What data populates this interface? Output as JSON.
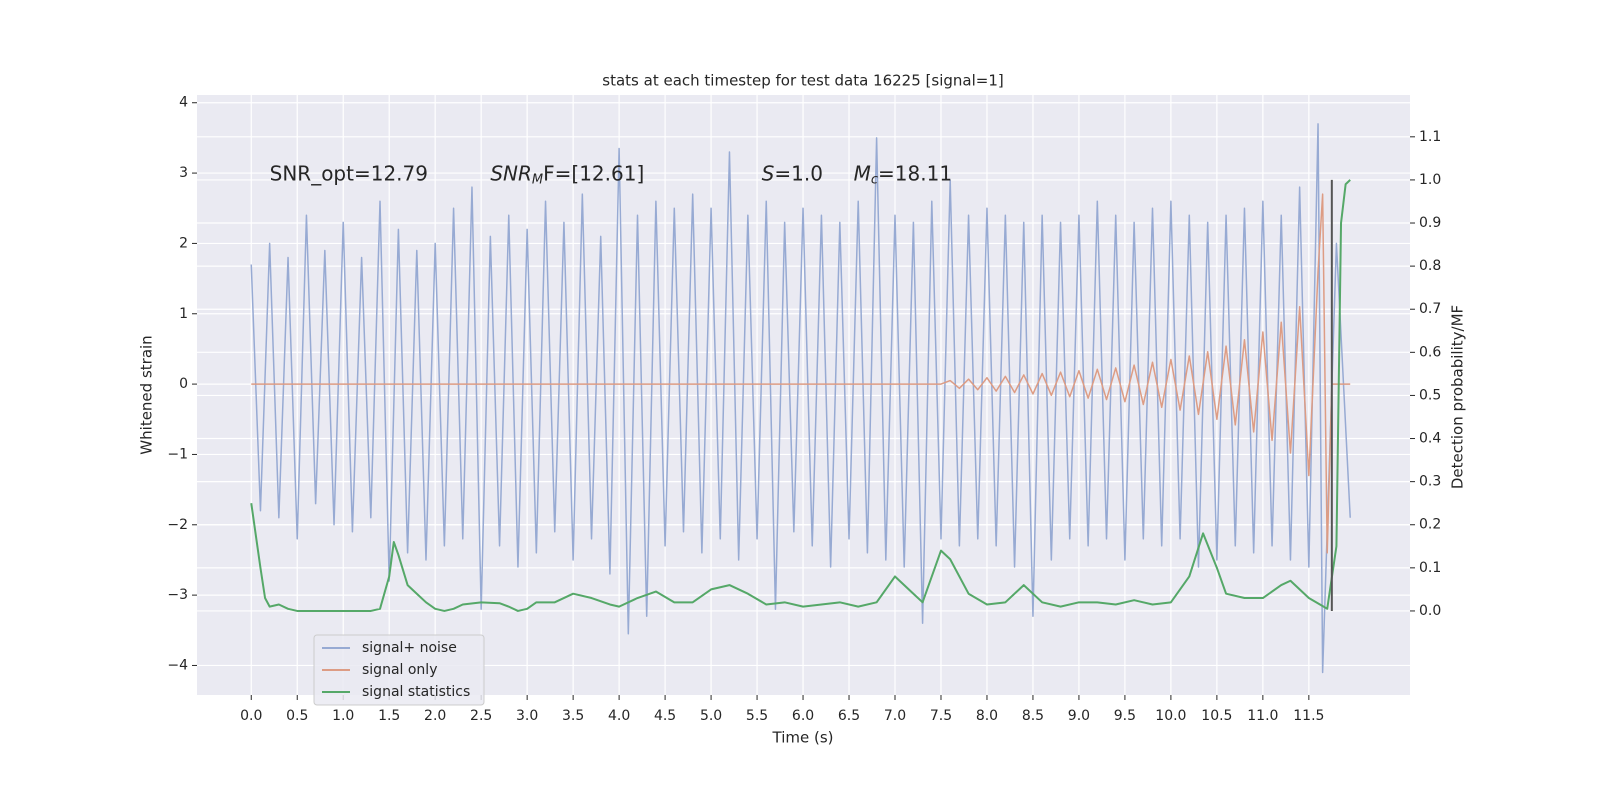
{
  "chart_data": {
    "type": "line",
    "title": "stats at each timestep for test data 16225 [signal=1]",
    "xlabel": "Time (s)",
    "ylabel": "Whitened strain",
    "y2label": "Detection probability/MF",
    "annotations": [
      [
        "SNR_opt=12.79"
      ],
      [
        "SNR",
        "M",
        "F=[12.61]"
      ],
      [
        "S",
        "=1.0"
      ],
      [
        "M",
        "c",
        "=18.11"
      ]
    ],
    "xlim": [
      -0.59,
      12.6
    ],
    "ylim": [
      -4.42,
      4.11
    ],
    "y2lim": [
      -0.195,
      1.197
    ],
    "xticks": [
      {
        "value": 0,
        "label": "0.0"
      },
      0.5,
      {
        "value": 1,
        "label": "1.0"
      },
      1.5,
      {
        "value": 2,
        "label": "2.0"
      },
      2.5,
      {
        "value": 3,
        "label": "3.0"
      },
      3.5,
      {
        "value": 4,
        "label": "4.0"
      },
      4.5,
      {
        "value": 5,
        "label": "5.0"
      },
      5.5,
      {
        "value": 6,
        "label": "6.0"
      },
      6.5,
      {
        "value": 7,
        "label": "7.0"
      },
      7.5,
      {
        "value": 8,
        "label": "8.0"
      },
      8.5,
      {
        "value": 9,
        "label": "9.0"
      },
      9.5,
      {
        "value": 10,
        "label": "10.0"
      },
      10.5,
      {
        "value": 11,
        "label": "11.0"
      },
      11.5
    ],
    "yticks": [
      {
        "value": -4,
        "label": "−4"
      },
      {
        "value": -3,
        "label": "−3"
      },
      {
        "value": -2,
        "label": "−2"
      },
      {
        "value": -1,
        "label": "−1"
      },
      0,
      1,
      2,
      3,
      4
    ],
    "y2ticks": [
      {
        "value": 0,
        "label": "0.0"
      },
      0.1,
      0.2,
      0.3,
      0.4,
      0.5,
      0.6,
      0.7,
      0.8,
      0.9,
      {
        "value": 1,
        "label": "1.0"
      },
      1.1
    ],
    "grid": true,
    "legend": "lower left",
    "series": [
      {
        "name": "signal+ noise",
        "color": "#97aad3",
        "x": [
          0.0,
          0.1,
          0.2,
          0.3,
          0.4,
          0.5,
          0.6,
          0.7,
          0.8,
          0.9,
          1.0,
          1.1,
          1.2,
          1.3,
          1.4,
          1.5,
          1.6,
          1.7,
          1.8,
          1.9,
          2.0,
          2.1,
          2.2,
          2.3,
          2.4,
          2.5,
          2.6,
          2.7,
          2.8,
          2.9,
          3.0,
          3.1,
          3.2,
          3.3,
          3.4,
          3.5,
          3.6,
          3.7,
          3.8,
          3.9,
          4.0,
          4.1,
          4.2,
          4.3,
          4.4,
          4.5,
          4.6,
          4.7,
          4.8,
          4.9,
          5.0,
          5.1,
          5.2,
          5.3,
          5.4,
          5.5,
          5.6,
          5.7,
          5.8,
          5.9,
          6.0,
          6.1,
          6.2,
          6.3,
          6.4,
          6.5,
          6.6,
          6.7,
          6.8,
          6.9,
          7.0,
          7.1,
          7.2,
          7.3,
          7.4,
          7.5,
          7.6,
          7.7,
          7.8,
          7.9,
          8.0,
          8.1,
          8.2,
          8.3,
          8.4,
          8.5,
          8.6,
          8.7,
          8.8,
          8.9,
          9.0,
          9.1,
          9.2,
          9.3,
          9.4,
          9.5,
          9.6,
          9.7,
          9.8,
          9.9,
          10.0,
          10.1,
          10.2,
          10.3,
          10.4,
          10.5,
          10.6,
          10.7,
          10.8,
          10.9,
          11.0,
          11.1,
          11.2,
          11.3,
          11.4,
          11.5,
          11.6,
          11.65,
          11.8,
          11.95
        ],
        "values": [
          1.7,
          -1.8,
          2.0,
          -1.9,
          1.8,
          -2.2,
          2.4,
          -1.7,
          1.9,
          -2.0,
          2.3,
          -2.1,
          1.8,
          -1.9,
          2.6,
          -2.8,
          2.2,
          -2.4,
          1.9,
          -2.5,
          2.0,
          -2.3,
          2.5,
          -2.2,
          2.8,
          -3.2,
          2.1,
          -2.3,
          2.4,
          -2.6,
          2.2,
          -2.4,
          2.6,
          -2.1,
          2.3,
          -2.5,
          2.7,
          -2.2,
          2.1,
          -2.7,
          3.35,
          -3.55,
          2.4,
          -3.3,
          2.6,
          -2.3,
          2.5,
          -2.1,
          2.7,
          -2.4,
          2.5,
          -2.2,
          3.3,
          -2.5,
          2.4,
          -2.2,
          2.6,
          -3.2,
          2.3,
          -2.1,
          2.5,
          -2.3,
          2.4,
          -2.6,
          2.3,
          -2.2,
          2.6,
          -2.4,
          3.5,
          -2.5,
          2.4,
          -2.6,
          2.3,
          -3.4,
          2.6,
          -2.2,
          2.9,
          -2.3,
          2.4,
          -2.2,
          2.5,
          -2.3,
          2.4,
          -2.6,
          2.3,
          -3.3,
          2.4,
          -2.5,
          2.3,
          -2.2,
          2.4,
          -2.3,
          2.6,
          -2.2,
          2.4,
          -2.5,
          2.3,
          -2.2,
          2.5,
          -2.3,
          2.6,
          -2.2,
          2.4,
          -2.6,
          2.3,
          -2.5,
          2.4,
          -2.3,
          2.5,
          -2.4,
          2.6,
          -2.3,
          2.4,
          -2.5,
          2.8,
          -2.6,
          3.7,
          -4.1,
          2.0,
          -1.9
        ]
      },
      {
        "name": "signal only",
        "color": "#dd9c84",
        "x": [
          0,
          7.5,
          7.6,
          7.7,
          7.8,
          7.9,
          8.0,
          8.1,
          8.2,
          8.3,
          8.4,
          8.5,
          8.6,
          8.7,
          8.8,
          8.9,
          9.0,
          9.1,
          9.2,
          9.3,
          9.4,
          9.5,
          9.6,
          9.7,
          9.8,
          9.9,
          10.0,
          10.1,
          10.2,
          10.3,
          10.4,
          10.5,
          10.6,
          10.7,
          10.8,
          10.9,
          11.0,
          11.1,
          11.2,
          11.3,
          11.4,
          11.5,
          11.6,
          11.65,
          11.7,
          11.75,
          11.95
        ],
        "values": [
          0,
          0,
          0.05,
          -0.06,
          0.07,
          -0.08,
          0.09,
          -0.1,
          0.11,
          -0.12,
          0.13,
          -0.14,
          0.15,
          -0.16,
          0.17,
          -0.18,
          0.19,
          -0.2,
          0.21,
          -0.22,
          0.23,
          -0.25,
          0.27,
          -0.29,
          0.31,
          -0.33,
          0.35,
          -0.37,
          0.4,
          -0.43,
          0.46,
          -0.5,
          0.54,
          -0.58,
          0.63,
          -0.68,
          0.74,
          -0.8,
          0.88,
          -0.98,
          1.1,
          -1.3,
          1.6,
          2.7,
          -2.4,
          0,
          0
        ]
      },
      {
        "name": "signal statistics",
        "color": "#55a868",
        "axis": "y2",
        "x": [
          0,
          0.1,
          0.15,
          0.2,
          0.3,
          0.4,
          0.5,
          0.8,
          1.0,
          1.3,
          1.4,
          1.5,
          1.55,
          1.6,
          1.7,
          1.8,
          1.9,
          2.0,
          2.1,
          2.2,
          2.3,
          2.5,
          2.7,
          2.8,
          2.9,
          3.0,
          3.1,
          3.3,
          3.5,
          3.7,
          3.9,
          4.0,
          4.2,
          4.4,
          4.6,
          4.8,
          5.0,
          5.2,
          5.4,
          5.6,
          5.8,
          6.0,
          6.2,
          6.4,
          6.6,
          6.8,
          7.0,
          7.2,
          7.3,
          7.5,
          7.6,
          7.8,
          8.0,
          8.2,
          8.4,
          8.6,
          8.8,
          9.0,
          9.2,
          9.4,
          9.6,
          9.8,
          10.0,
          10.2,
          10.35,
          10.5,
          10.6,
          10.8,
          11.0,
          11.2,
          11.3,
          11.5,
          11.7,
          11.8,
          11.85,
          11.9,
          11.95
        ],
        "values": [
          0.25,
          0.1,
          0.03,
          0.01,
          0.015,
          0.005,
          0.0,
          0.0,
          0.0,
          0.0,
          0.005,
          0.08,
          0.16,
          0.13,
          0.06,
          0.04,
          0.02,
          0.005,
          0.0,
          0.005,
          0.015,
          0.02,
          0.018,
          0.01,
          0.0,
          0.005,
          0.02,
          0.02,
          0.04,
          0.03,
          0.015,
          0.01,
          0.03,
          0.045,
          0.02,
          0.02,
          0.05,
          0.06,
          0.04,
          0.015,
          0.02,
          0.01,
          0.015,
          0.02,
          0.01,
          0.02,
          0.08,
          0.04,
          0.02,
          0.14,
          0.12,
          0.04,
          0.015,
          0.02,
          0.06,
          0.02,
          0.01,
          0.02,
          0.02,
          0.015,
          0.025,
          0.015,
          0.02,
          0.08,
          0.18,
          0.1,
          0.04,
          0.03,
          0.03,
          0.06,
          0.07,
          0.03,
          0.005,
          0.15,
          0.9,
          0.99,
          1.0
        ]
      }
    ],
    "vlines": [
      {
        "x": 11.75,
        "y": [
          0,
          1
        ],
        "color": "#555555"
      }
    ]
  }
}
